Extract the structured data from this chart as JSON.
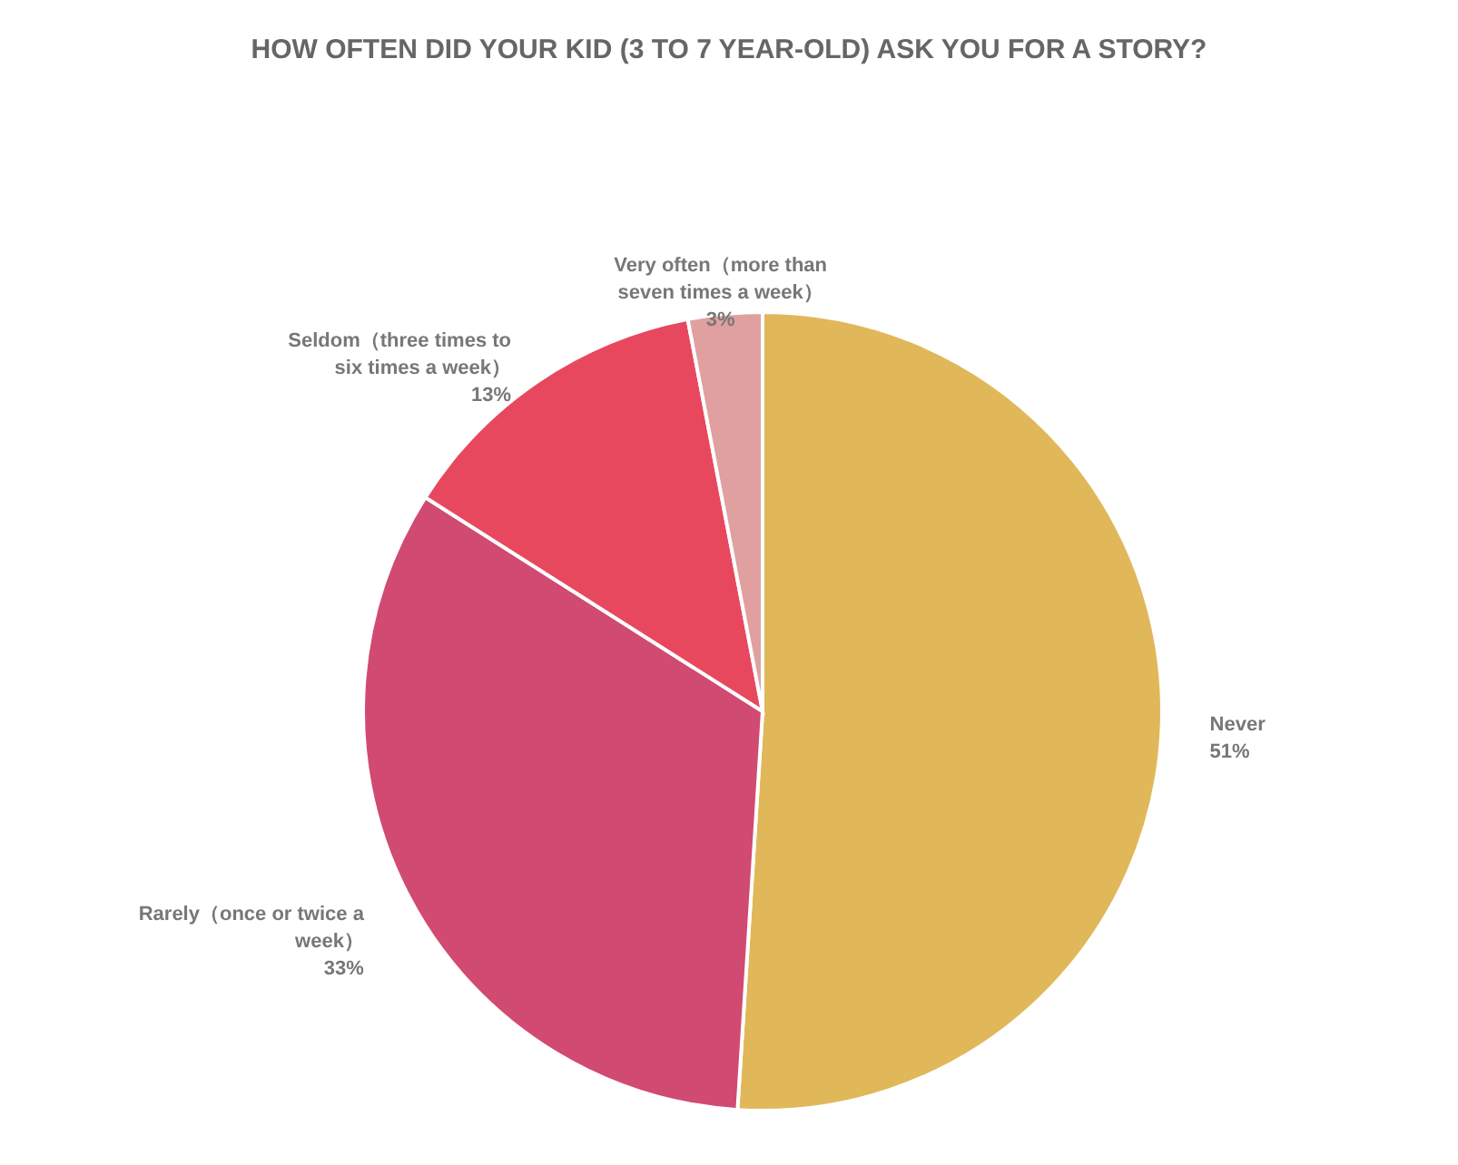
{
  "chart_data": {
    "type": "pie",
    "title": "HOW OFTEN DID YOUR KID (3 TO 7 YEAR-OLD) ASK YOU FOR A STORY?",
    "categories": [
      "Never",
      "Rarely（once or twice a week）",
      "Seldom（three times to six times a week）",
      "Very often（more than seven times a week）"
    ],
    "values": [
      51,
      33,
      13,
      3
    ],
    "value_labels": [
      "51%",
      "33%",
      "13%",
      "3%"
    ],
    "colors": [
      "#e0b85a",
      "#d14a72",
      "#e8485e",
      "#e0a0a0"
    ],
    "legend": false
  }
}
